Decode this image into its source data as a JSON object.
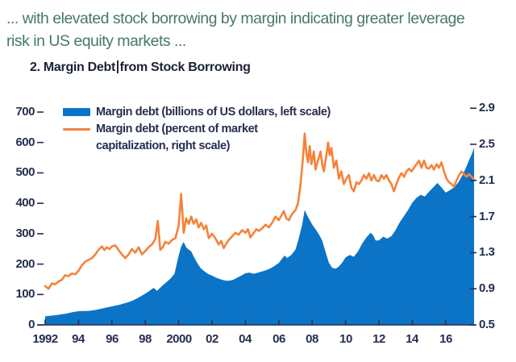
{
  "header": {
    "line1": "... with elevated stock borrowing by margin indicating greater leverage",
    "line2": "risk in US equity markets ..."
  },
  "figure": {
    "title_before_cursor": "2. Margin Debt",
    "title_after_cursor": "from Stock Borrowing"
  },
  "chart_data": {
    "type": "combo-area-line",
    "title": "2. Margin Debt from Stock Borrowing",
    "grid": "off",
    "legend_position": "top-left-inside",
    "colors": {
      "area": "#0b74c6",
      "line": "#f5823b",
      "axis": "#262e4f"
    },
    "x_axis": {
      "range": [
        1992,
        2017.8
      ],
      "ticks": [
        1992,
        1994,
        1996,
        1998,
        2000,
        2002,
        2004,
        2006,
        2008,
        2010,
        2012,
        2014,
        2016
      ],
      "tick_labels": [
        "1992",
        "94",
        "96",
        "98",
        "2000",
        "02",
        "04",
        "06",
        "08",
        "10",
        "12",
        "14",
        "16"
      ]
    },
    "left_axis": {
      "range": [
        0,
        700
      ],
      "ticks": [
        0,
        100,
        200,
        300,
        400,
        500,
        600,
        700
      ]
    },
    "right_axis": {
      "range": [
        0.5,
        2.9
      ],
      "ticks": [
        0.5,
        0.9,
        1.3,
        1.7,
        2.1,
        2.5,
        2.9
      ]
    },
    "series": [
      {
        "name": "Margin debt (billions of US dollars, left scale)",
        "type": "area",
        "axis": "left",
        "color_key": "area",
        "points": [
          [
            1992.0,
            28
          ],
          [
            1992.25,
            30
          ],
          [
            1992.5,
            31
          ],
          [
            1992.75,
            33
          ],
          [
            1993.0,
            35
          ],
          [
            1993.25,
            37
          ],
          [
            1993.5,
            40
          ],
          [
            1993.75,
            43
          ],
          [
            1994.0,
            45
          ],
          [
            1994.25,
            46
          ],
          [
            1994.5,
            46
          ],
          [
            1994.75,
            47
          ],
          [
            1995.0,
            49
          ],
          [
            1995.25,
            52
          ],
          [
            1995.5,
            55
          ],
          [
            1995.75,
            58
          ],
          [
            1996.0,
            61
          ],
          [
            1996.25,
            64
          ],
          [
            1996.5,
            67
          ],
          [
            1996.75,
            71
          ],
          [
            1997.0,
            75
          ],
          [
            1997.25,
            80
          ],
          [
            1997.5,
            87
          ],
          [
            1997.75,
            95
          ],
          [
            1998.0,
            103
          ],
          [
            1998.25,
            112
          ],
          [
            1998.5,
            122
          ],
          [
            1998.7,
            112
          ],
          [
            1998.85,
            120
          ],
          [
            1999.0,
            128
          ],
          [
            1999.25,
            140
          ],
          [
            1999.5,
            152
          ],
          [
            1999.75,
            168
          ],
          [
            2000.0,
            228
          ],
          [
            2000.15,
            258
          ],
          [
            2000.3,
            273
          ],
          [
            2000.45,
            255
          ],
          [
            2000.6,
            248
          ],
          [
            2000.75,
            242
          ],
          [
            2000.9,
            225
          ],
          [
            2001.1,
            205
          ],
          [
            2001.3,
            188
          ],
          [
            2001.5,
            178
          ],
          [
            2001.75,
            168
          ],
          [
            2002.0,
            162
          ],
          [
            2002.25,
            155
          ],
          [
            2002.5,
            150
          ],
          [
            2002.75,
            146
          ],
          [
            2003.0,
            145
          ],
          [
            2003.25,
            148
          ],
          [
            2003.5,
            155
          ],
          [
            2003.75,
            162
          ],
          [
            2004.0,
            170
          ],
          [
            2004.25,
            172
          ],
          [
            2004.5,
            168
          ],
          [
            2004.75,
            172
          ],
          [
            2005.0,
            176
          ],
          [
            2005.25,
            180
          ],
          [
            2005.5,
            186
          ],
          [
            2005.75,
            194
          ],
          [
            2006.0,
            204
          ],
          [
            2006.2,
            218
          ],
          [
            2006.35,
            228
          ],
          [
            2006.5,
            220
          ],
          [
            2006.75,
            230
          ],
          [
            2007.0,
            248
          ],
          [
            2007.2,
            285
          ],
          [
            2007.4,
            330
          ],
          [
            2007.55,
            378
          ],
          [
            2007.7,
            360
          ],
          [
            2007.85,
            345
          ],
          [
            2008.0,
            330
          ],
          [
            2008.2,
            315
          ],
          [
            2008.4,
            298
          ],
          [
            2008.6,
            278
          ],
          [
            2008.8,
            240
          ],
          [
            2009.0,
            205
          ],
          [
            2009.2,
            188
          ],
          [
            2009.4,
            185
          ],
          [
            2009.6,
            192
          ],
          [
            2009.8,
            205
          ],
          [
            2010.0,
            222
          ],
          [
            2010.25,
            230
          ],
          [
            2010.5,
            224
          ],
          [
            2010.75,
            242
          ],
          [
            2011.0,
            268
          ],
          [
            2011.25,
            288
          ],
          [
            2011.5,
            303
          ],
          [
            2011.65,
            295
          ],
          [
            2011.8,
            278
          ],
          [
            2012.0,
            278
          ],
          [
            2012.25,
            290
          ],
          [
            2012.5,
            284
          ],
          [
            2012.75,
            292
          ],
          [
            2013.0,
            312
          ],
          [
            2013.25,
            338
          ],
          [
            2013.5,
            358
          ],
          [
            2013.75,
            378
          ],
          [
            2014.0,
            402
          ],
          [
            2014.25,
            418
          ],
          [
            2014.5,
            428
          ],
          [
            2014.75,
            422
          ],
          [
            2015.0,
            438
          ],
          [
            2015.25,
            452
          ],
          [
            2015.5,
            467
          ],
          [
            2015.75,
            452
          ],
          [
            2016.0,
            435
          ],
          [
            2016.25,
            443
          ],
          [
            2016.5,
            452
          ],
          [
            2016.75,
            468
          ],
          [
            2017.0,
            492
          ],
          [
            2017.2,
            515
          ],
          [
            2017.4,
            542
          ],
          [
            2017.55,
            560
          ],
          [
            2017.7,
            582
          ]
        ]
      },
      {
        "name": "Margin debt (percent of market capitalization, right scale)",
        "type": "line",
        "axis": "right",
        "color_key": "line",
        "points": [
          [
            1992.0,
            0.93
          ],
          [
            1992.2,
            0.9
          ],
          [
            1992.4,
            0.96
          ],
          [
            1992.6,
            0.95
          ],
          [
            1992.8,
            0.98
          ],
          [
            1993.0,
            1.0
          ],
          [
            1993.2,
            1.05
          ],
          [
            1993.4,
            1.04
          ],
          [
            1993.6,
            1.07
          ],
          [
            1993.8,
            1.06
          ],
          [
            1994.0,
            1.1
          ],
          [
            1994.2,
            1.16
          ],
          [
            1994.4,
            1.2
          ],
          [
            1994.6,
            1.22
          ],
          [
            1994.8,
            1.24
          ],
          [
            1995.0,
            1.28
          ],
          [
            1995.2,
            1.33
          ],
          [
            1995.4,
            1.37
          ],
          [
            1995.55,
            1.33
          ],
          [
            1995.7,
            1.36
          ],
          [
            1995.85,
            1.34
          ],
          [
            1996.0,
            1.37
          ],
          [
            1996.2,
            1.38
          ],
          [
            1996.4,
            1.33
          ],
          [
            1996.6,
            1.28
          ],
          [
            1996.8,
            1.24
          ],
          [
            1997.0,
            1.28
          ],
          [
            1997.2,
            1.34
          ],
          [
            1997.4,
            1.3
          ],
          [
            1997.6,
            1.36
          ],
          [
            1997.8,
            1.28
          ],
          [
            1998.0,
            1.32
          ],
          [
            1998.2,
            1.36
          ],
          [
            1998.4,
            1.39
          ],
          [
            1998.6,
            1.45
          ],
          [
            1998.75,
            1.65
          ],
          [
            1998.9,
            1.33
          ],
          [
            1999.05,
            1.36
          ],
          [
            1999.2,
            1.42
          ],
          [
            1999.4,
            1.4
          ],
          [
            1999.6,
            1.44
          ],
          [
            1999.8,
            1.46
          ],
          [
            2000.0,
            1.6
          ],
          [
            2000.15,
            1.95
          ],
          [
            2000.3,
            1.52
          ],
          [
            2000.45,
            1.68
          ],
          [
            2000.6,
            1.62
          ],
          [
            2000.75,
            1.7
          ],
          [
            2000.9,
            1.62
          ],
          [
            2001.05,
            1.67
          ],
          [
            2001.2,
            1.58
          ],
          [
            2001.35,
            1.63
          ],
          [
            2001.5,
            1.56
          ],
          [
            2001.65,
            1.6
          ],
          [
            2001.8,
            1.46
          ],
          [
            2002.0,
            1.51
          ],
          [
            2002.2,
            1.46
          ],
          [
            2002.4,
            1.39
          ],
          [
            2002.55,
            1.43
          ],
          [
            2002.7,
            1.35
          ],
          [
            2002.85,
            1.4
          ],
          [
            2003.0,
            1.44
          ],
          [
            2003.2,
            1.48
          ],
          [
            2003.4,
            1.52
          ],
          [
            2003.6,
            1.5
          ],
          [
            2003.8,
            1.55
          ],
          [
            2004.0,
            1.52
          ],
          [
            2004.15,
            1.56
          ],
          [
            2004.3,
            1.47
          ],
          [
            2004.5,
            1.52
          ],
          [
            2004.65,
            1.56
          ],
          [
            2004.8,
            1.54
          ],
          [
            2005.0,
            1.57
          ],
          [
            2005.2,
            1.61
          ],
          [
            2005.4,
            1.58
          ],
          [
            2005.6,
            1.63
          ],
          [
            2005.8,
            1.7
          ],
          [
            2006.0,
            1.66
          ],
          [
            2006.15,
            1.71
          ],
          [
            2006.3,
            1.76
          ],
          [
            2006.45,
            1.68
          ],
          [
            2006.6,
            1.66
          ],
          [
            2006.8,
            1.73
          ],
          [
            2007.0,
            1.77
          ],
          [
            2007.15,
            1.85
          ],
          [
            2007.3,
            2.05
          ],
          [
            2007.45,
            2.35
          ],
          [
            2007.55,
            2.62
          ],
          [
            2007.65,
            2.4
          ],
          [
            2007.75,
            2.3
          ],
          [
            2007.85,
            2.48
          ],
          [
            2007.95,
            2.28
          ],
          [
            2008.1,
            2.42
          ],
          [
            2008.2,
            2.22
          ],
          [
            2008.35,
            2.32
          ],
          [
            2008.5,
            2.42
          ],
          [
            2008.6,
            2.28
          ],
          [
            2008.7,
            2.2
          ],
          [
            2008.85,
            2.38
          ],
          [
            2008.95,
            2.52
          ],
          [
            2009.05,
            2.38
          ],
          [
            2009.15,
            2.46
          ],
          [
            2009.3,
            2.24
          ],
          [
            2009.45,
            2.32
          ],
          [
            2009.6,
            2.12
          ],
          [
            2009.75,
            2.2
          ],
          [
            2009.9,
            2.06
          ],
          [
            2010.05,
            2.12
          ],
          [
            2010.2,
            2.16
          ],
          [
            2010.35,
            2.02
          ],
          [
            2010.5,
            1.98
          ],
          [
            2010.65,
            2.08
          ],
          [
            2010.8,
            2.06
          ],
          [
            2010.95,
            2.1
          ],
          [
            2011.1,
            2.16
          ],
          [
            2011.25,
            2.12
          ],
          [
            2011.4,
            2.18
          ],
          [
            2011.55,
            2.1
          ],
          [
            2011.7,
            2.16
          ],
          [
            2011.85,
            2.1
          ],
          [
            2012.0,
            2.09
          ],
          [
            2012.15,
            2.16
          ],
          [
            2012.3,
            2.12
          ],
          [
            2012.45,
            2.16
          ],
          [
            2012.6,
            2.1
          ],
          [
            2012.75,
            2.06
          ],
          [
            2012.9,
            1.98
          ],
          [
            2013.05,
            2.06
          ],
          [
            2013.2,
            2.13
          ],
          [
            2013.35,
            2.18
          ],
          [
            2013.5,
            2.14
          ],
          [
            2013.65,
            2.2
          ],
          [
            2013.8,
            2.23
          ],
          [
            2013.95,
            2.2
          ],
          [
            2014.1,
            2.24
          ],
          [
            2014.25,
            2.28
          ],
          [
            2014.4,
            2.32
          ],
          [
            2014.55,
            2.24
          ],
          [
            2014.7,
            2.32
          ],
          [
            2014.85,
            2.24
          ],
          [
            2015.0,
            2.23
          ],
          [
            2015.15,
            2.27
          ],
          [
            2015.3,
            2.22
          ],
          [
            2015.45,
            2.28
          ],
          [
            2015.6,
            2.24
          ],
          [
            2015.75,
            2.3
          ],
          [
            2015.9,
            2.2
          ],
          [
            2016.05,
            2.12
          ],
          [
            2016.2,
            2.08
          ],
          [
            2016.35,
            2.06
          ],
          [
            2016.5,
            2.03
          ],
          [
            2016.65,
            2.1
          ],
          [
            2016.8,
            2.16
          ],
          [
            2016.95,
            2.2
          ],
          [
            2017.1,
            2.17
          ],
          [
            2017.25,
            2.14
          ],
          [
            2017.4,
            2.17
          ],
          [
            2017.55,
            2.14
          ],
          [
            2017.7,
            2.11
          ]
        ]
      }
    ]
  }
}
